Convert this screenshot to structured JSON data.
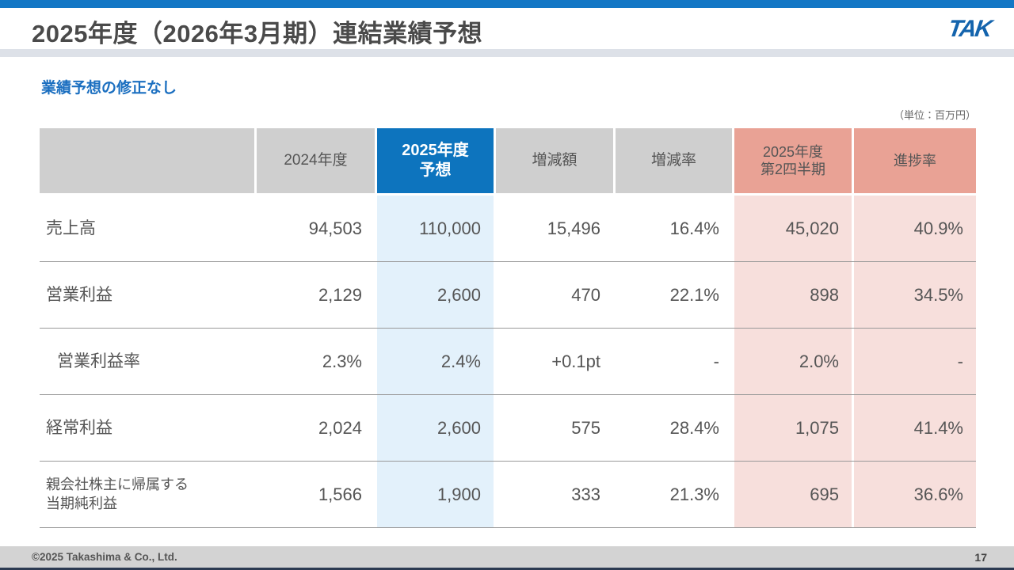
{
  "header": {
    "title": "2025年度（2026年3月期）連結業績予想",
    "logo_text": "TAK"
  },
  "subtitle": "業績予想の修正なし",
  "unit_note": "（単位：百万円）",
  "table": {
    "columns": {
      "label": "",
      "fy2024": "2024年度",
      "fy2025_forecast": "2025年度\n予想",
      "change_amount": "増減額",
      "change_rate": "増減率",
      "fy2025_q2": "2025年度\n第2四半期",
      "progress_rate": "進捗率"
    },
    "rows": [
      {
        "label": "売上高",
        "fy2024": "94,503",
        "fy2025_forecast": "110,000",
        "change_amount": "15,496",
        "change_rate": "16.4%",
        "fy2025_q2": "45,020",
        "progress_rate": "40.9%"
      },
      {
        "label": "営業利益",
        "fy2024": "2,129",
        "fy2025_forecast": "2,600",
        "change_amount": "470",
        "change_rate": "22.1%",
        "fy2025_q2": "898",
        "progress_rate": "34.5%"
      },
      {
        "label": "営業利益率",
        "fy2024": "2.3%",
        "fy2025_forecast": "2.4%",
        "change_amount": "+0.1pt",
        "change_rate": "-",
        "fy2025_q2": "2.0%",
        "progress_rate": "-"
      },
      {
        "label": "経常利益",
        "fy2024": "2,024",
        "fy2025_forecast": "2,600",
        "change_amount": "575",
        "change_rate": "28.4%",
        "fy2025_q2": "1,075",
        "progress_rate": "41.4%"
      },
      {
        "label": "親会社株主に帰属する\n当期純利益",
        "fy2024": "1,566",
        "fy2025_forecast": "1,900",
        "change_amount": "333",
        "change_rate": "21.3%",
        "fy2025_q2": "695",
        "progress_rate": "36.6%"
      }
    ]
  },
  "footer": {
    "copyright": "©2025 Takashima & Co., Ltd.",
    "page_number": "17"
  },
  "colors": {
    "top_bar_blue": "#1377c5",
    "accent_blue": "#0d74be",
    "header_gray": "#cfcfcf",
    "header_salmon": "#e9a295",
    "body_light_blue": "#e3f1fb",
    "body_light_pink": "#f7dfdc",
    "subtitle_blue": "#1b6fc0"
  }
}
